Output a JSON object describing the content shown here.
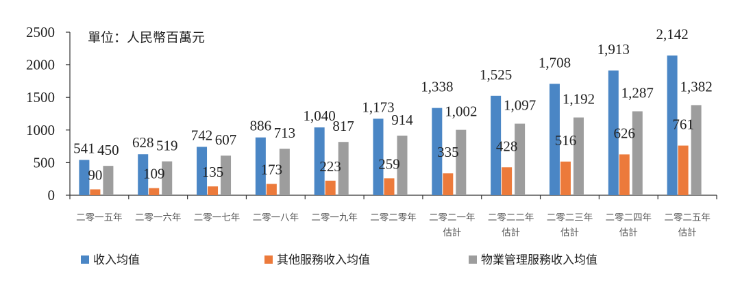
{
  "chart_data": {
    "type": "bar",
    "unit_label": "單位：人民幣百萬元",
    "categories": [
      [
        "二零一五年"
      ],
      [
        "二零一六年"
      ],
      [
        "二零一七年"
      ],
      [
        "二零一八年"
      ],
      [
        "二零一九年"
      ],
      [
        "二零二零年"
      ],
      [
        "二零二一年",
        "估計"
      ],
      [
        "二零二二年",
        "估計"
      ],
      [
        "二零二三年",
        "估計"
      ],
      [
        "二零二四年",
        "估計"
      ],
      [
        "二零二五年",
        "估計"
      ]
    ],
    "series": [
      {
        "name": "收入均值",
        "color": "#4a86c5",
        "values": [
          541,
          628,
          742,
          886,
          1040,
          1173,
          1338,
          1525,
          1708,
          1913,
          2142
        ],
        "labels": [
          "541",
          "628",
          "742",
          "886",
          "1,040",
          "1,173",
          "1,338",
          "1,525",
          "1,708",
          "1,913",
          "2,142"
        ]
      },
      {
        "name": "其他服務收入均值",
        "color": "#ec7a3b",
        "values": [
          90,
          109,
          135,
          173,
          223,
          259,
          335,
          428,
          516,
          626,
          761
        ],
        "labels": [
          "90",
          "109",
          "135",
          "173",
          "223",
          "259",
          "335",
          "428",
          "516",
          "626",
          "761"
        ]
      },
      {
        "name": "物業管理服務收入均值",
        "color": "#9d9d9d",
        "values": [
          450,
          519,
          607,
          713,
          817,
          914,
          1002,
          1097,
          1192,
          1287,
          1382
        ],
        "labels": [
          "450",
          "519",
          "607",
          "713",
          "817",
          "914",
          "1,002",
          "1,097",
          "1,192",
          "1,287",
          "1,382"
        ]
      }
    ],
    "ylim": [
      0,
      2500
    ],
    "yticks": [
      "0",
      "500",
      "1000",
      "1500",
      "2000",
      "2500"
    ],
    "ytick_values": [
      0,
      500,
      1000,
      1500,
      2000,
      2500
    ],
    "grid": false,
    "legend_position": "bottom"
  }
}
